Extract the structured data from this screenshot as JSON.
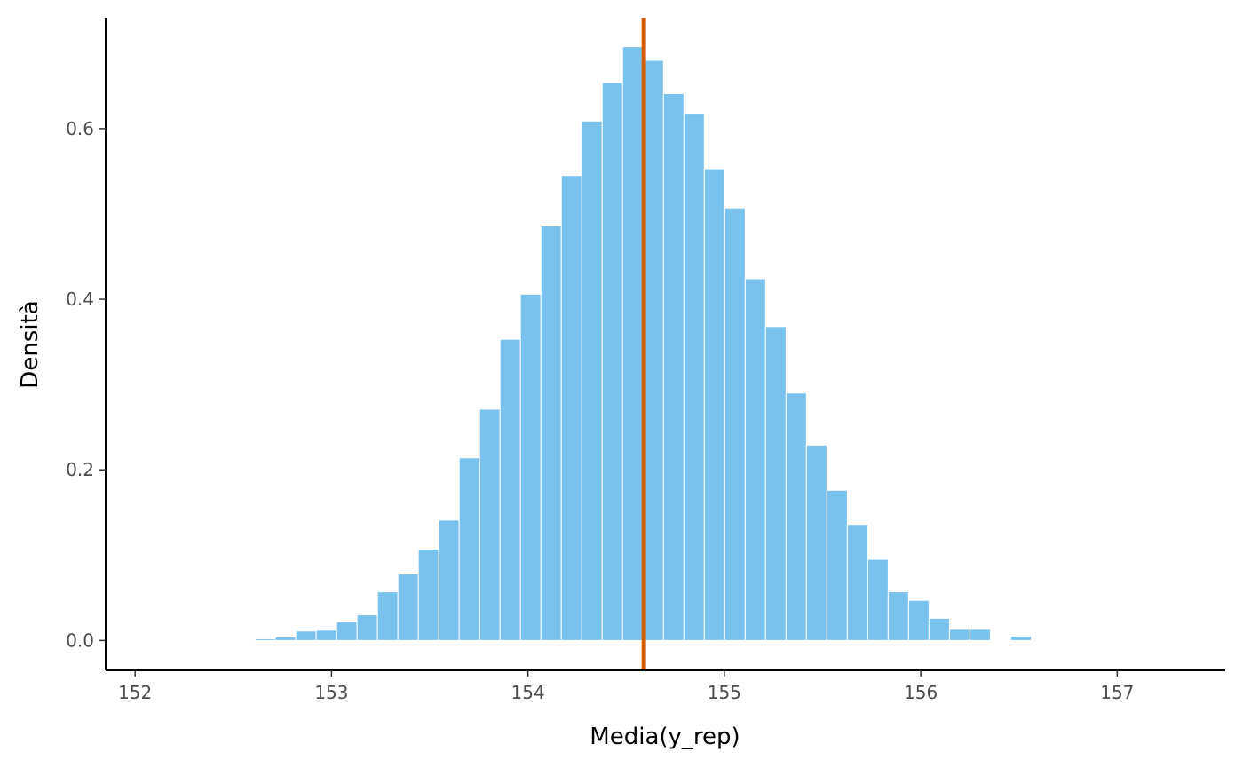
{
  "chart_data": {
    "type": "bar",
    "histogram": true,
    "title": "",
    "xlabel": "Media(y_rep)",
    "ylabel": "Densità",
    "xlim": [
      151.85,
      157.55
    ],
    "ylim": [
      -0.035,
      0.73
    ],
    "x_ticks": [
      152,
      153,
      154,
      155,
      156,
      157
    ],
    "x_tick_labels": [
      "152",
      "153",
      "154",
      "155",
      "156",
      "157"
    ],
    "y_ticks": [
      0.0,
      0.2,
      0.4,
      0.6
    ],
    "y_tick_labels": [
      "0.0",
      "0.2",
      "0.4",
      "0.6"
    ],
    "bin_width": 0.104,
    "bins_start": [
      152.61,
      152.714,
      152.818,
      152.922,
      153.026,
      153.13,
      153.234,
      153.338,
      153.442,
      153.546,
      153.65,
      153.754,
      153.858,
      153.962,
      154.066,
      154.17,
      154.274,
      154.378,
      154.482,
      154.586,
      154.69,
      154.794,
      154.898,
      155.002,
      155.106,
      155.21,
      155.314,
      155.418,
      155.522,
      155.626,
      155.73,
      155.834,
      155.938,
      156.042,
      156.146,
      156.25,
      156.354,
      156.458
    ],
    "values": [
      0.002,
      0.004,
      0.011,
      0.012,
      0.022,
      0.03,
      0.057,
      0.078,
      0.107,
      0.141,
      0.214,
      0.271,
      0.353,
      0.406,
      0.486,
      0.545,
      0.609,
      0.654,
      0.696,
      0.68,
      0.641,
      0.618,
      0.553,
      0.507,
      0.424,
      0.368,
      0.29,
      0.229,
      0.176,
      0.136,
      0.095,
      0.057,
      0.047,
      0.026,
      0.013,
      0.013,
      0.001,
      0.005
    ],
    "bar_color": "#79c2ed",
    "bar_edge_color": "#ffffff",
    "reference_line": {
      "x": 154.59,
      "color": "#d55e00"
    },
    "grid": false
  }
}
